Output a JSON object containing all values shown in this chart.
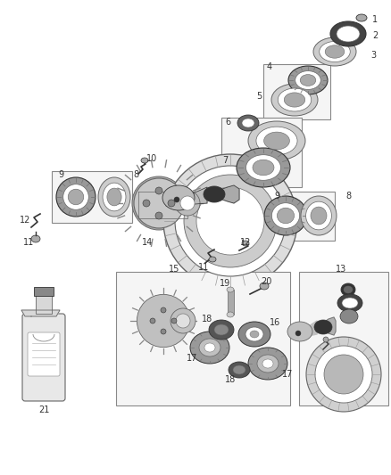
{
  "background_color": "#ffffff",
  "figsize": [
    4.38,
    5.33
  ],
  "dpi": 100,
  "font_size": 7,
  "text_color": "#333333",
  "box_color": "#f5f5f5",
  "box_edge": "#888888",
  "part_gray": "#aaaaaa",
  "part_dark": "#666666",
  "part_light": "#cccccc",
  "part_black": "#333333",
  "white": "#ffffff"
}
